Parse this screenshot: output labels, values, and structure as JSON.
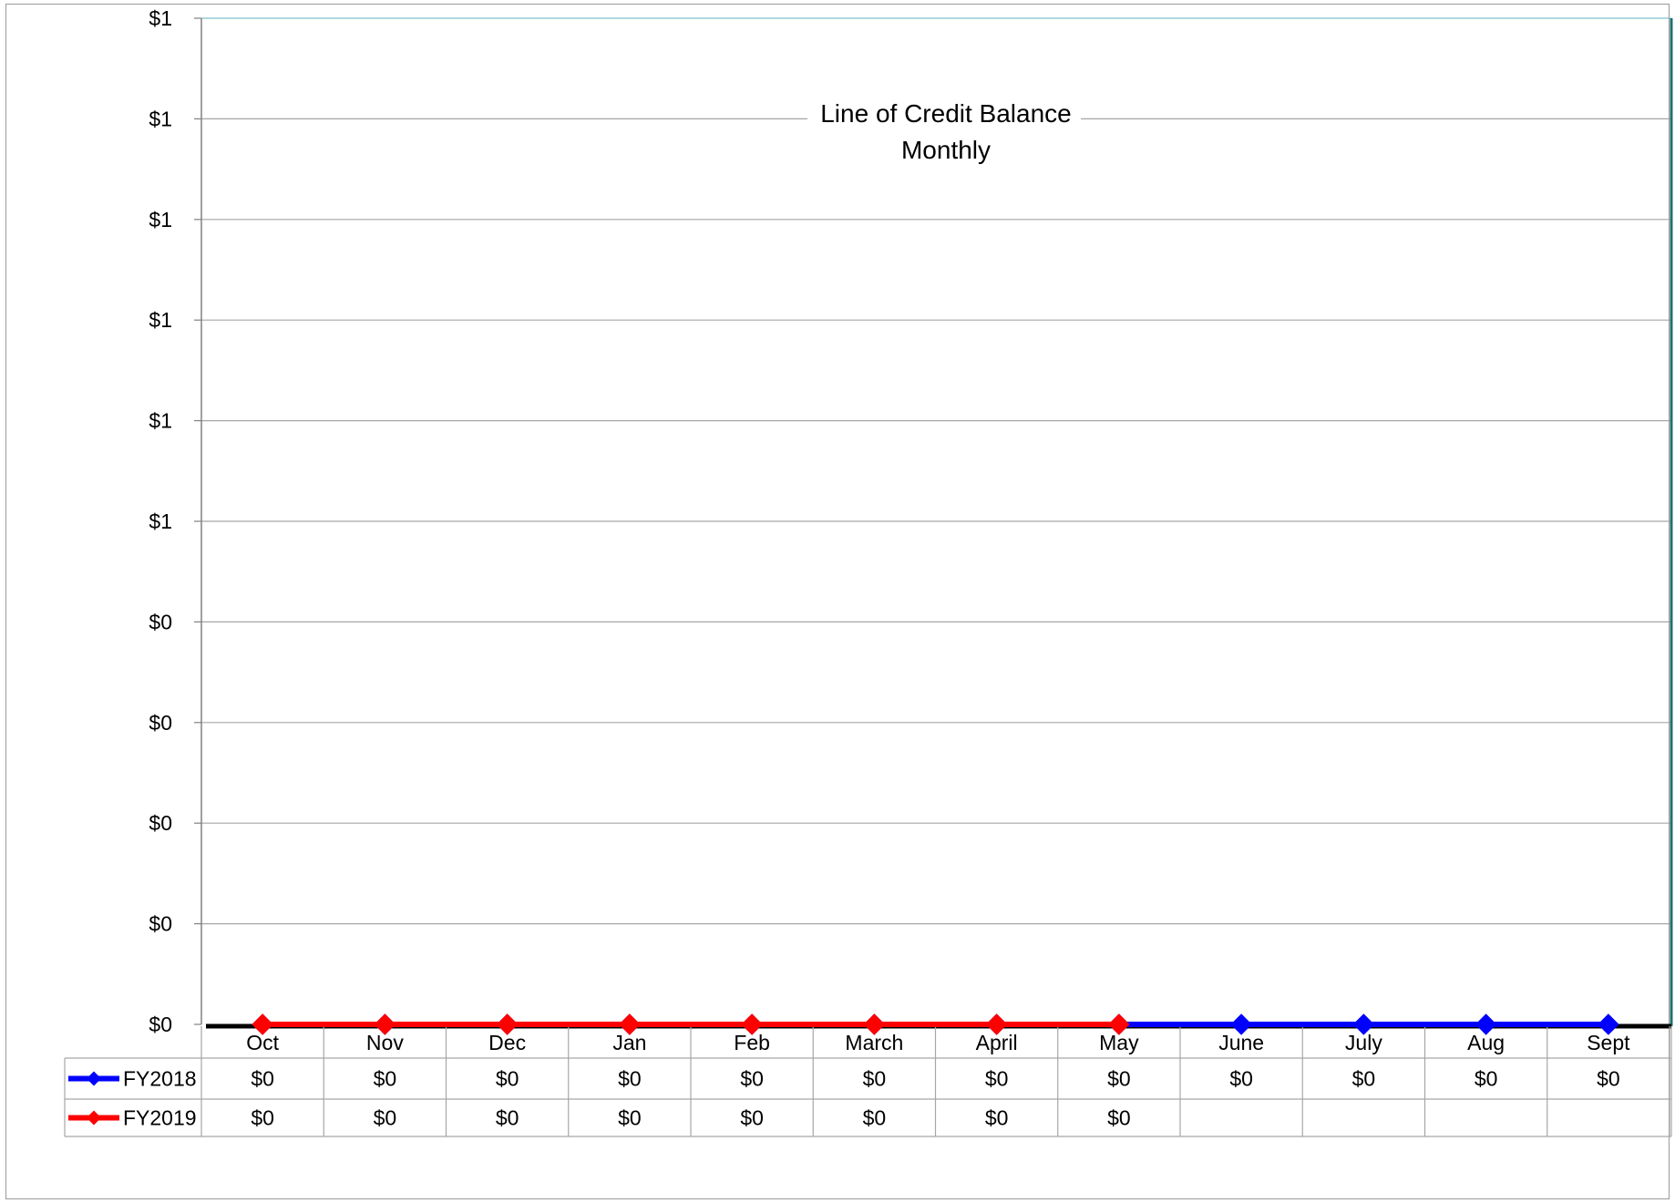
{
  "chart_data": {
    "type": "line",
    "title": "Line of Credit Balance",
    "subtitle": "Monthly",
    "categories": [
      "Oct",
      "Nov",
      "Dec",
      "Jan",
      "Feb",
      "March",
      "April",
      "May",
      "June",
      "July",
      "Aug",
      "Sept"
    ],
    "y_tick_labels": [
      "$0",
      "$0",
      "$0",
      "$0",
      "$0",
      "$1",
      "$1",
      "$1",
      "$1",
      "$1",
      "$1"
    ],
    "ylim": [
      0,
      1
    ],
    "grid": true,
    "legend": "data-table",
    "series": [
      {
        "name": "FY2018",
        "color": "#0000ff",
        "values": [
          0,
          0,
          0,
          0,
          0,
          0,
          0,
          0,
          0,
          0,
          0,
          0
        ],
        "table_labels": [
          "$0",
          "$0",
          "$0",
          "$0",
          "$0",
          "$0",
          "$0",
          "$0",
          "$0",
          "$0",
          "$0",
          "$0"
        ]
      },
      {
        "name": "FY2019",
        "color": "#ff0000",
        "values": [
          0,
          0,
          0,
          0,
          0,
          0,
          0,
          0,
          null,
          null,
          null,
          null
        ],
        "table_labels": [
          "$0",
          "$0",
          "$0",
          "$0",
          "$0",
          "$0",
          "$0",
          "$0",
          "",
          "",
          "",
          ""
        ]
      }
    ]
  }
}
